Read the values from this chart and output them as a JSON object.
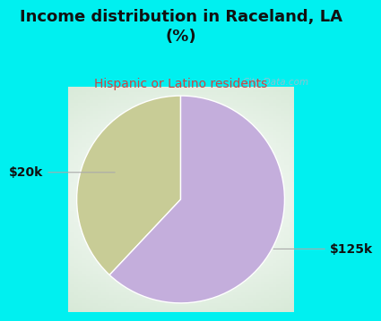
{
  "title": "Income distribution in Raceland, LA\n(%)",
  "subtitle": "Hispanic or Latino residents",
  "slices": [
    0.38,
    0.62
  ],
  "labels": [
    "$20k",
    "$125k"
  ],
  "colors": [
    "#c8cc96",
    "#c4aedc"
  ],
  "background_color": "#00f0f0",
  "title_fontsize": 13,
  "subtitle_fontsize": 10,
  "subtitle_color": "#cc4444",
  "label_fontsize": 10,
  "startangle": 90,
  "annotation_color": "#111111",
  "watermark_text": "City-Data.com",
  "watermark_color": "#aabbcc",
  "line_color": "#aaaaaa"
}
